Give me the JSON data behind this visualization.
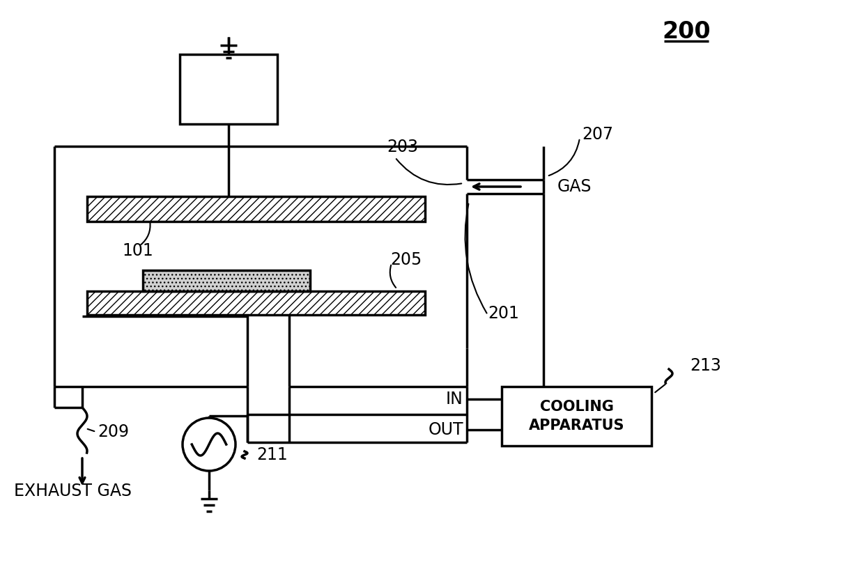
{
  "bg_color": "#ffffff",
  "line_color": "#000000",
  "labels": {
    "main_title": "200",
    "label_207": "207",
    "label_203": "203",
    "label_gas": "GAS",
    "label_101": "101",
    "label_205": "205",
    "label_201": "201",
    "label_209": "209",
    "label_exhaust": "EXHAUST GAS",
    "label_211": "211",
    "label_in": "IN",
    "label_out": "OUT",
    "label_213": "213",
    "label_cooling": "COOLING\nAPPARATUS"
  },
  "fontsize_title": 24,
  "fontsize_labels": 17,
  "fontsize_cooling": 15
}
